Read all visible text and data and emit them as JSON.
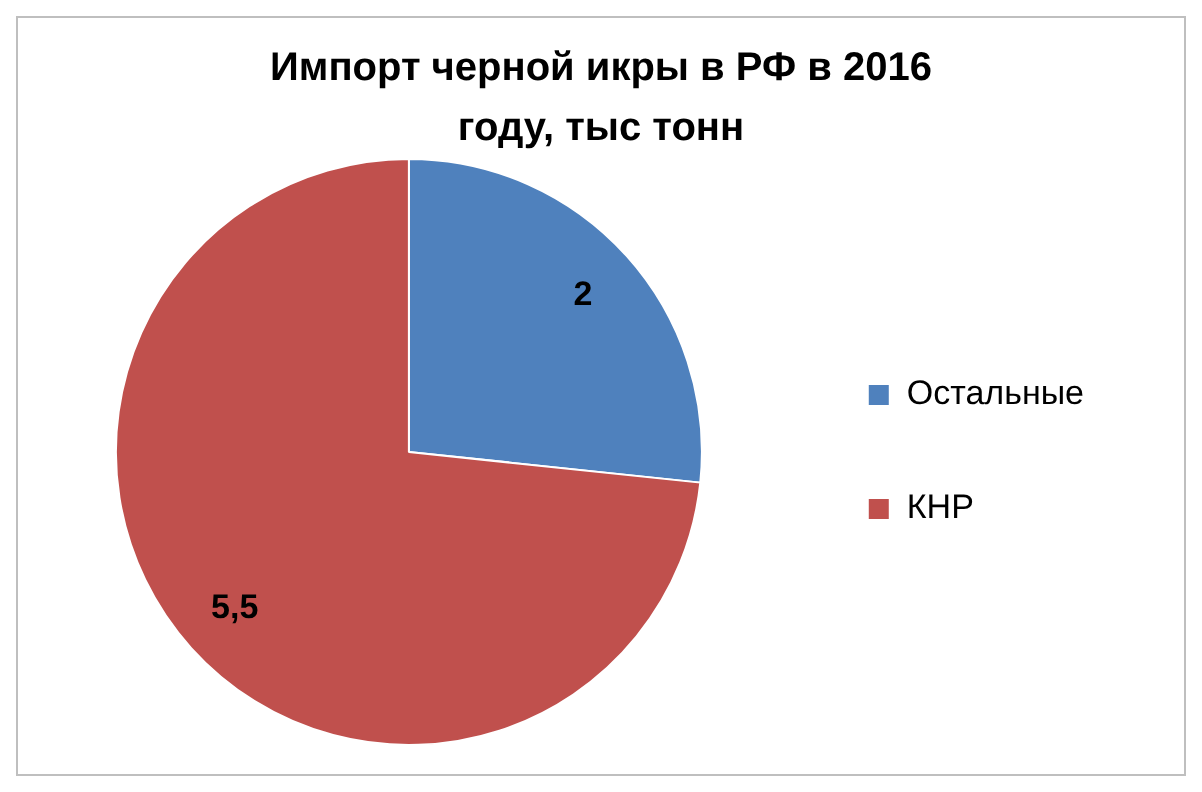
{
  "chart_data": {
    "type": "pie",
    "title": "Импорт черной икры в РФ в 2016 году, тыс тонн",
    "categories": [
      "Остальные",
      "КНР"
    ],
    "values": [
      2,
      5.5
    ],
    "colors": [
      "#4f81bd",
      "#c0504d"
    ],
    "value_labels": [
      "2",
      "5,5"
    ],
    "legend": "right"
  }
}
